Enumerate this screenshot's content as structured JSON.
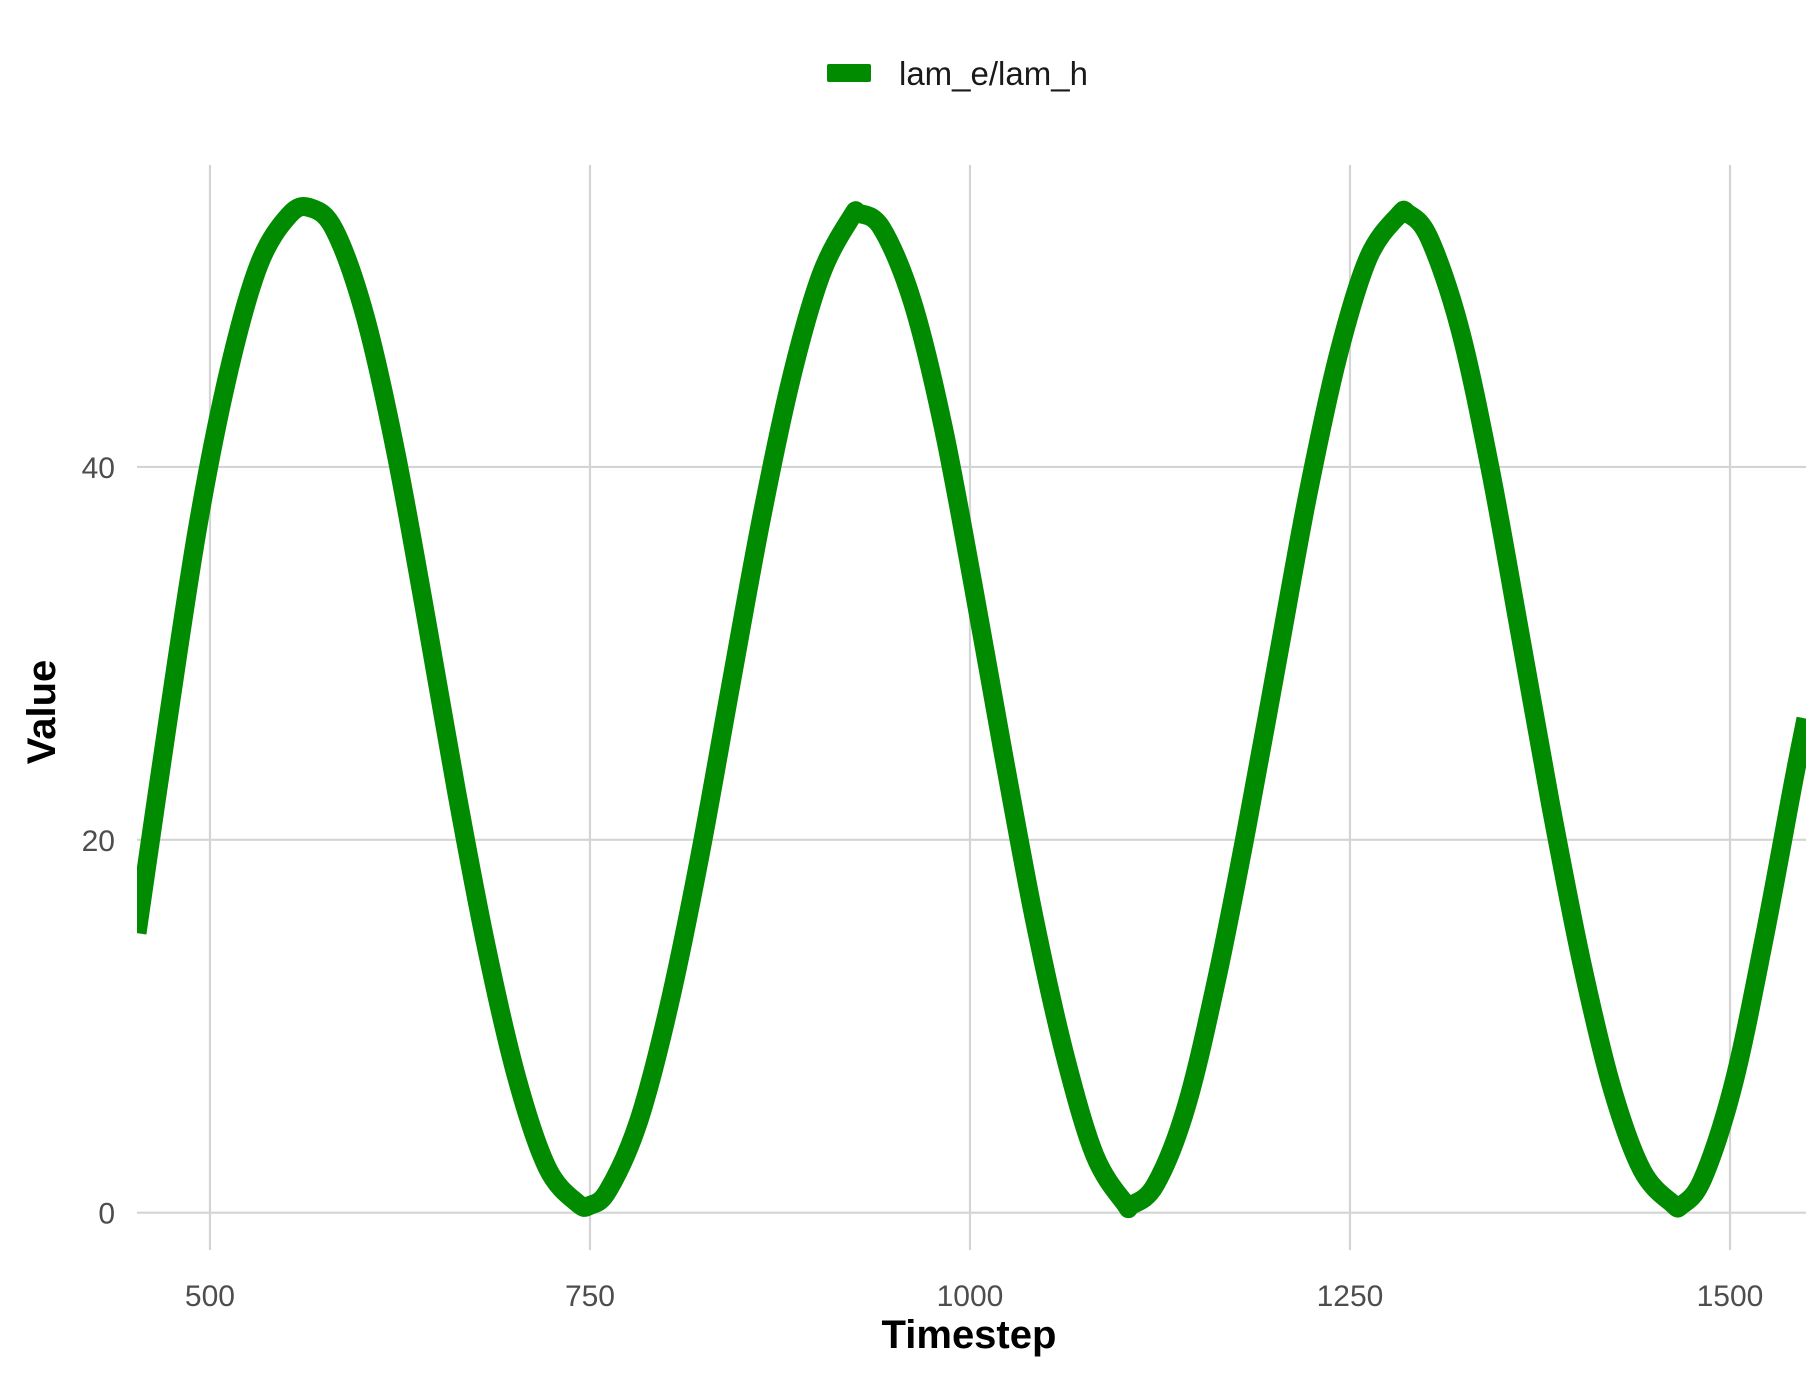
{
  "chart_data": {
    "type": "line",
    "title": "",
    "xlabel": "Timestep",
    "ylabel": "Value",
    "xlim": [
      452,
      1550
    ],
    "ylim": [
      -2,
      57
    ],
    "x_ticks": [
      500,
      750,
      1000,
      1250,
      1500
    ],
    "x_tick_labels": [
      "500",
      "750",
      "1000",
      "1250",
      "1500"
    ],
    "y_ticks": [
      0,
      20,
      40
    ],
    "y_tick_labels": [
      "0",
      "20",
      "40"
    ],
    "grid": true,
    "legend": {
      "position": "top",
      "entries": [
        "lam_e/lam_h"
      ]
    },
    "series": [
      {
        "name": "lam_e/lam_h",
        "color": "#008B00",
        "x": [
          452,
          472,
          492,
          512,
          532,
          552,
          566,
          582,
          602,
          622,
          642,
          662,
          682,
          702,
          722,
          742,
          750,
          762,
          782,
          802,
          822,
          842,
          862,
          882,
          902,
          922,
          927,
          942,
          962,
          982,
          1002,
          1022,
          1042,
          1062,
          1082,
          1102,
          1106,
          1122,
          1142,
          1162,
          1182,
          1202,
          1222,
          1242,
          1262,
          1282,
          1288,
          1302,
          1322,
          1342,
          1362,
          1382,
          1402,
          1422,
          1442,
          1462,
          1468,
          1482,
          1502,
          1522,
          1542,
          1550
        ],
        "y": [
          15.0,
          26.2,
          36.8,
          45.0,
          50.8,
          53.5,
          53.9,
          52.7,
          48.1,
          40.9,
          32.0,
          22.7,
          14.2,
          7.2,
          2.4,
          0.5,
          0.4,
          1.2,
          4.9,
          11.1,
          19.0,
          28.0,
          36.9,
          44.6,
          50.3,
          53.4,
          53.6,
          52.8,
          48.9,
          42.3,
          33.7,
          24.6,
          15.9,
          8.6,
          3.1,
          0.5,
          0.4,
          1.5,
          5.6,
          12.4,
          20.6,
          29.5,
          38.4,
          45.9,
          51.2,
          53.5,
          53.6,
          52.3,
          47.5,
          40.0,
          31.0,
          21.9,
          13.6,
          6.8,
          2.3,
          0.5,
          0.4,
          1.8,
          6.8,
          14.5,
          23.2,
          26.5
        ]
      }
    ]
  }
}
